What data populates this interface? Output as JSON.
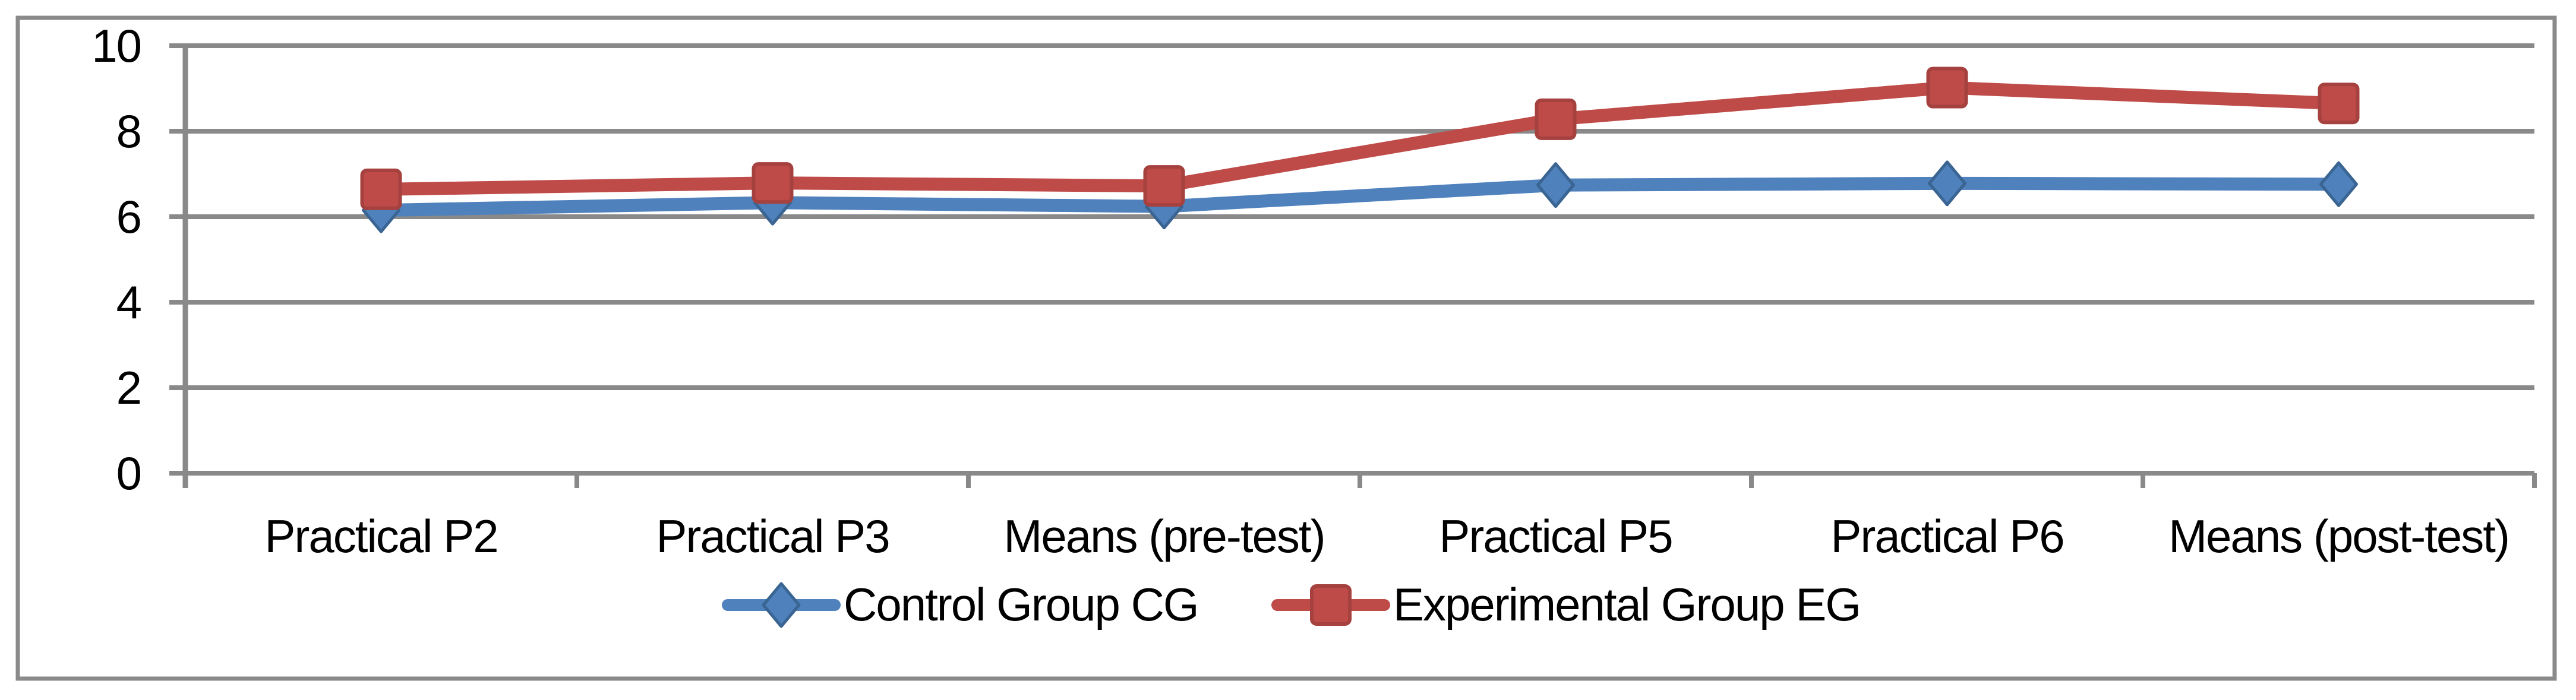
{
  "chart_data": {
    "type": "line",
    "title": "",
    "xlabel": "",
    "ylabel": "",
    "categories": [
      "Practical P2",
      "Practical P3",
      "Means (pre-test)",
      "Practical P5",
      "Practical P6",
      "Means (post-test)"
    ],
    "series": [
      {
        "name": "Control Group CG",
        "marker": "diamond",
        "color": "#4F81BD",
        "edge_color": "#3A6593",
        "values": [
          6.15,
          6.33,
          6.24,
          6.74,
          6.78,
          6.76
        ]
      },
      {
        "name": "Experimental Group EG",
        "marker": "square",
        "color": "#BE4B48",
        "edge_color": "#A5413E",
        "values": [
          6.64,
          6.79,
          6.72,
          8.28,
          9.02,
          8.65
        ]
      }
    ],
    "ylim": [
      0,
      10
    ],
    "yticks": [
      0,
      2,
      4,
      6,
      8,
      10
    ],
    "ytick_labels": [
      "0",
      "2",
      "4",
      "6",
      "8",
      "10"
    ],
    "grid": true,
    "legend_position": "bottom-center",
    "colors": {
      "gridline": "#898989",
      "axis": "#898989",
      "border": "#8A8A8A",
      "text": "#000000",
      "background": "#FFFFFF"
    }
  }
}
